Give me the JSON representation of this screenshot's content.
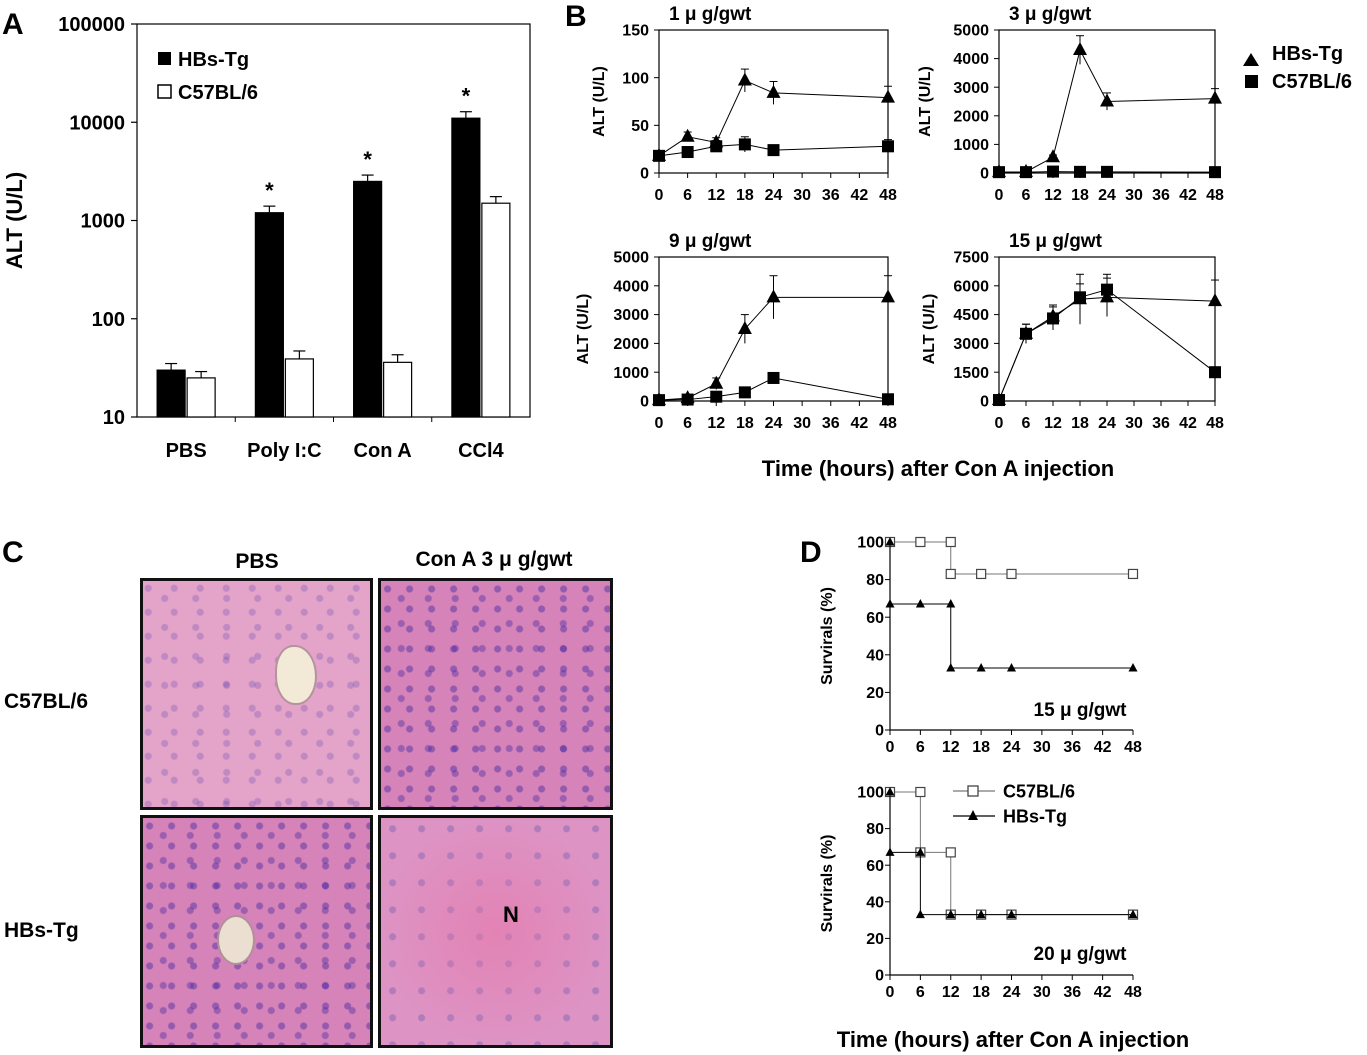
{
  "panels": {
    "a": "A",
    "b": "B",
    "c": "C",
    "d": "D"
  },
  "chart_data": [
    {
      "id": "A",
      "type": "bar",
      "yscale": "log",
      "ylabel": "ALT (U/L)",
      "ylim": [
        10,
        100000
      ],
      "yticks": [
        "10",
        "100",
        "1000",
        "10000",
        "100000"
      ],
      "categories": [
        "PBS",
        "Poly I:C",
        "Con A",
        "CCl4"
      ],
      "series": [
        {
          "name": "HBs-Tg",
          "color": "#000000",
          "values": [
            30,
            1200,
            2500,
            11000
          ],
          "errors": [
            5,
            200,
            400,
            1800
          ]
        },
        {
          "name": "C57BL/6",
          "color": "#ffffff",
          "values": [
            25,
            39,
            36,
            1500
          ],
          "errors": [
            4,
            8,
            7,
            250
          ]
        }
      ],
      "significance": [
        "",
        "*",
        "*",
        "*"
      ],
      "legend_position": "top-left"
    },
    {
      "id": "B1",
      "type": "line",
      "title": "1 μ g/gwt",
      "ylabel": "ALT (U/L)",
      "ylim": [
        0,
        150
      ],
      "yticks": [
        0,
        50,
        100,
        150
      ],
      "xticks": [
        0,
        6,
        12,
        18,
        24,
        30,
        36,
        42,
        48
      ],
      "xlim": [
        0,
        48
      ],
      "x": [
        0,
        6,
        12,
        18,
        24,
        48
      ],
      "series": [
        {
          "name": "HBs-Tg",
          "marker": "triangle",
          "values": [
            18,
            38,
            32,
            97,
            84,
            79
          ],
          "errors": [
            3,
            5,
            5,
            12,
            12,
            12
          ]
        },
        {
          "name": "C57BL/6",
          "marker": "square",
          "values": [
            18,
            22,
            28,
            30,
            24,
            28
          ],
          "errors": [
            3,
            4,
            6,
            8,
            5,
            7
          ]
        }
      ]
    },
    {
      "id": "B2",
      "type": "line",
      "title": "3 μ g/gwt",
      "ylabel": "ALT (U/L)",
      "ylim": [
        0,
        5000
      ],
      "yticks": [
        0,
        1000,
        2000,
        3000,
        4000,
        5000
      ],
      "xticks": [
        0,
        6,
        12,
        18,
        24,
        30,
        36,
        42,
        48
      ],
      "xlim": [
        0,
        48
      ],
      "x": [
        0,
        6,
        12,
        18,
        24,
        48
      ],
      "series": [
        {
          "name": "HBs-Tg",
          "marker": "triangle",
          "values": [
            30,
            40,
            550,
            4300,
            2500,
            2600
          ],
          "errors": [
            10,
            10,
            80,
            500,
            300,
            350
          ]
        },
        {
          "name": "C57BL/6",
          "marker": "square",
          "values": [
            30,
            30,
            50,
            40,
            40,
            30
          ],
          "errors": [
            5,
            5,
            10,
            10,
            10,
            5
          ]
        }
      ]
    },
    {
      "id": "B3",
      "type": "line",
      "title": "9 μ g/gwt",
      "ylabel": "ALT (U/L)",
      "ylim": [
        0,
        5000
      ],
      "yticks": [
        0,
        1000,
        2000,
        3000,
        4000,
        5000
      ],
      "xticks": [
        0,
        6,
        12,
        18,
        24,
        30,
        36,
        42,
        48
      ],
      "xlim": [
        0,
        48
      ],
      "x": [
        0,
        6,
        12,
        18,
        24,
        48
      ],
      "series": [
        {
          "name": "HBs-Tg",
          "marker": "triangle",
          "values": [
            30,
            100,
            600,
            2500,
            3600,
            3600
          ],
          "errors": [
            10,
            50,
            200,
            500,
            750,
            750
          ]
        },
        {
          "name": "C57BL/6",
          "marker": "square",
          "values": [
            30,
            50,
            150,
            300,
            800,
            60
          ],
          "errors": [
            5,
            10,
            30,
            80,
            100,
            20
          ]
        }
      ]
    },
    {
      "id": "B4",
      "type": "line",
      "title": "15 μ g/gwt",
      "ylabel": "ALT (U/L)",
      "ylim": [
        0,
        7500
      ],
      "yticks": [
        0,
        1500,
        3000,
        4500,
        6000,
        7500
      ],
      "xticks": [
        0,
        6,
        12,
        18,
        24,
        30,
        36,
        42,
        48
      ],
      "xlim": [
        0,
        48
      ],
      "x": [
        0,
        6,
        12,
        18,
        24,
        48
      ],
      "series": [
        {
          "name": "HBs-Tg",
          "marker": "triangle",
          "values": [
            50,
            3500,
            4400,
            5300,
            5400,
            5200
          ],
          "errors": [
            20,
            500,
            600,
            1300,
            1000,
            1100
          ]
        },
        {
          "name": "C57BL/6",
          "marker": "square",
          "values": [
            50,
            3500,
            4300,
            5400,
            5800,
            1500
          ],
          "errors": [
            20,
            500,
            600,
            700,
            800,
            200
          ]
        }
      ]
    },
    {
      "id": "D1",
      "type": "line",
      "label": "15 μ g/gwt",
      "ylabel": "Survirals (%)",
      "ylim": [
        0,
        100
      ],
      "yticks": [
        0,
        20,
        40,
        60,
        80,
        100
      ],
      "xticks": [
        0,
        6,
        12,
        18,
        24,
        30,
        36,
        42,
        48
      ],
      "xlim": [
        0,
        48
      ],
      "step": true,
      "series": [
        {
          "name": "C57BL/6",
          "marker": "open-square",
          "x": [
            0,
            6,
            12,
            12,
            18,
            24,
            48
          ],
          "values": [
            100,
            100,
            100,
            83,
            83,
            83,
            83
          ]
        },
        {
          "name": "HBs-Tg",
          "marker": "triangle",
          "x": [
            0,
            0,
            6,
            12,
            12,
            18,
            24,
            48
          ],
          "values": [
            100,
            67,
            67,
            67,
            33,
            33,
            33,
            33
          ]
        }
      ]
    },
    {
      "id": "D2",
      "type": "line",
      "label": "20 μ g/gwt",
      "ylabel": "Survirals (%)",
      "ylim": [
        0,
        100
      ],
      "yticks": [
        0,
        20,
        40,
        60,
        80,
        100
      ],
      "xticks": [
        0,
        6,
        12,
        18,
        24,
        30,
        36,
        42,
        48
      ],
      "xlim": [
        0,
        48
      ],
      "step": true,
      "series": [
        {
          "name": "C57BL/6",
          "marker": "open-square",
          "x": [
            0,
            6,
            6,
            12,
            12,
            18,
            24,
            48
          ],
          "values": [
            100,
            100,
            67,
            67,
            33,
            33,
            33,
            33
          ]
        },
        {
          "name": "HBs-Tg",
          "marker": "triangle",
          "x": [
            0,
            0,
            6,
            6,
            12,
            18,
            24,
            48
          ],
          "values": [
            100,
            67,
            67,
            33,
            33,
            33,
            33,
            33
          ]
        }
      ],
      "legend": [
        "C57BL/6",
        "HBs-Tg"
      ]
    }
  ],
  "legend_b": {
    "items": [
      "HBs-Tg",
      "C57BL/6"
    ]
  },
  "legend_a": {
    "items": [
      "HBs-Tg",
      "C57BL/6"
    ]
  },
  "xlabel_b": "Time (hours) after Con A injection",
  "xlabel_d": "Time (hours) after Con A injection",
  "histology": {
    "col_headers": [
      "PBS",
      "Con A 3 μ g/gwt"
    ],
    "row_headers": [
      "C57BL/6",
      "HBs-Tg"
    ],
    "necrosis_marker": "N"
  }
}
